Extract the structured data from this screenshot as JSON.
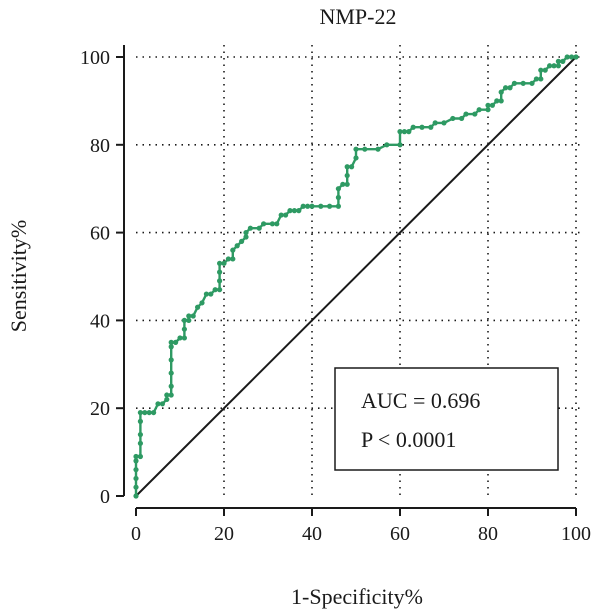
{
  "chart_data": {
    "type": "line",
    "title": "NMP-22",
    "xlabel": "1-Specificity%",
    "ylabel": "Sensitivity%",
    "xlim": [
      0,
      100
    ],
    "ylim": [
      0,
      100
    ],
    "x_ticks": [
      0,
      20,
      40,
      60,
      80,
      100
    ],
    "y_ticks": [
      0,
      20,
      40,
      60,
      80,
      100
    ],
    "grid": "dotted",
    "series": [
      {
        "color": "#2e9a63",
        "marker": "dot",
        "points": [
          [
            0,
            0
          ],
          [
            0,
            2
          ],
          [
            0,
            4
          ],
          [
            0,
            6
          ],
          [
            0,
            8
          ],
          [
            0,
            9
          ],
          [
            1,
            9
          ],
          [
            1,
            12
          ],
          [
            1,
            14
          ],
          [
            1,
            17
          ],
          [
            1,
            19
          ],
          [
            2,
            19
          ],
          [
            3,
            19
          ],
          [
            4,
            19
          ],
          [
            5,
            21
          ],
          [
            6,
            21
          ],
          [
            7,
            22
          ],
          [
            7,
            23
          ],
          [
            8,
            23
          ],
          [
            8,
            25
          ],
          [
            8,
            28
          ],
          [
            8,
            31
          ],
          [
            8,
            34
          ],
          [
            8,
            35
          ],
          [
            9,
            35
          ],
          [
            10,
            36
          ],
          [
            11,
            36
          ],
          [
            11,
            38
          ],
          [
            11,
            40
          ],
          [
            12,
            40
          ],
          [
            12,
            41
          ],
          [
            13,
            41
          ],
          [
            14,
            43
          ],
          [
            15,
            44
          ],
          [
            16,
            46
          ],
          [
            17,
            46
          ],
          [
            18,
            47
          ],
          [
            19,
            47
          ],
          [
            19,
            49
          ],
          [
            19,
            51
          ],
          [
            19,
            53
          ],
          [
            20,
            53
          ],
          [
            21,
            54
          ],
          [
            22,
            54
          ],
          [
            22,
            56
          ],
          [
            23,
            57
          ],
          [
            24,
            58
          ],
          [
            25,
            59
          ],
          [
            25,
            60
          ],
          [
            26,
            61
          ],
          [
            28,
            61
          ],
          [
            29,
            62
          ],
          [
            31,
            62
          ],
          [
            32,
            62
          ],
          [
            33,
            64
          ],
          [
            34,
            64
          ],
          [
            35,
            65
          ],
          [
            36,
            65
          ],
          [
            37,
            65
          ],
          [
            38,
            66
          ],
          [
            39,
            66
          ],
          [
            40,
            66
          ],
          [
            42,
            66
          ],
          [
            44,
            66
          ],
          [
            46,
            66
          ],
          [
            46,
            68
          ],
          [
            46,
            70
          ],
          [
            47,
            71
          ],
          [
            48,
            71
          ],
          [
            48,
            73
          ],
          [
            48,
            75
          ],
          [
            49,
            75
          ],
          [
            50,
            77
          ],
          [
            50,
            79
          ],
          [
            52,
            79
          ],
          [
            55,
            79
          ],
          [
            57,
            80
          ],
          [
            60,
            80
          ],
          [
            60,
            83
          ],
          [
            61,
            83
          ],
          [
            62,
            83
          ],
          [
            63,
            84
          ],
          [
            65,
            84
          ],
          [
            67,
            84
          ],
          [
            68,
            85
          ],
          [
            70,
            85
          ],
          [
            72,
            86
          ],
          [
            74,
            86
          ],
          [
            75,
            87
          ],
          [
            77,
            87
          ],
          [
            78,
            88
          ],
          [
            80,
            88
          ],
          [
            80,
            89
          ],
          [
            81,
            89
          ],
          [
            82,
            90
          ],
          [
            83,
            90
          ],
          [
            83,
            92
          ],
          [
            84,
            93
          ],
          [
            85,
            93
          ],
          [
            86,
            94
          ],
          [
            88,
            94
          ],
          [
            90,
            94
          ],
          [
            91,
            95
          ],
          [
            92,
            95
          ],
          [
            92,
            97
          ],
          [
            93,
            97
          ],
          [
            94,
            98
          ],
          [
            95,
            98
          ],
          [
            96,
            98
          ],
          [
            96,
            99
          ],
          [
            97,
            99
          ],
          [
            98,
            100
          ],
          [
            99,
            100
          ],
          [
            100,
            100
          ]
        ]
      }
    ],
    "reference_line": {
      "from": [
        0,
        0
      ],
      "to": [
        100,
        100
      ],
      "color": "#1a1a1a"
    },
    "annotation": {
      "lines": [
        "AUC = 0.696",
        "P < 0.0001"
      ],
      "placement": "bottom-right"
    }
  }
}
